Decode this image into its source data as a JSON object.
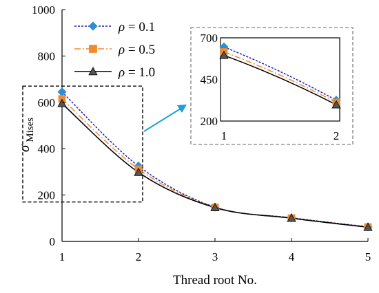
{
  "chart_data": {
    "type": "line",
    "xlabel": "Thread root No.",
    "ylabel": {
      "symbol": "σ",
      "subscript": "Mises"
    },
    "xlim": [
      1,
      5
    ],
    "ylim": [
      0,
      1000
    ],
    "xticks": [
      "1",
      "2",
      "3",
      "4",
      "5"
    ],
    "yticks": [
      "0",
      "200",
      "400",
      "600",
      "800",
      "1000"
    ],
    "x": [
      1,
      2,
      3,
      4,
      5
    ],
    "legend_position": "top-left",
    "series": [
      {
        "name_symbol": "ρ",
        "name_value": " = 0.1",
        "values": [
          645,
          325,
          148,
          102,
          63
        ],
        "color": "#1f1fb4",
        "line": "dotted",
        "marker": "diamond",
        "marker_color": "#2b8fd0"
      },
      {
        "name_symbol": "ρ",
        "name_value": " = 0.5",
        "values": [
          615,
          312,
          147,
          101,
          62
        ],
        "color": "#f28a30",
        "line": "dash-dot",
        "marker": "square",
        "marker_color": "#f28a30"
      },
      {
        "name_symbol": "ρ",
        "name_value": " = 1.0",
        "values": [
          595,
          298,
          146,
          100,
          61
        ],
        "color": "#000000",
        "line": "solid",
        "marker": "triangle",
        "marker_color": "#555555"
      }
    ],
    "inset": {
      "xlim": [
        1,
        2
      ],
      "ylim": [
        200,
        700
      ],
      "xticks": [
        "1",
        "2"
      ],
      "yticks": [
        "200",
        "450",
        "700"
      ],
      "source_region_x": [
        1,
        2
      ],
      "source_region_y": [
        170,
        670
      ]
    },
    "arrow_color": "#1e9fd8"
  }
}
